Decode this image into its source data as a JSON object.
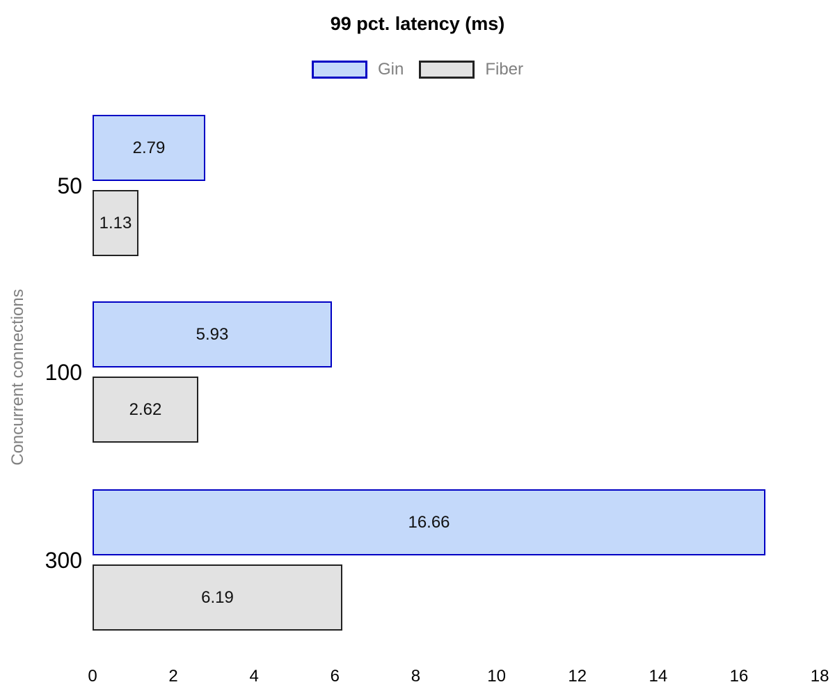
{
  "chart_data": {
    "type": "bar",
    "orientation": "horizontal",
    "title": "99 pct. latency (ms)",
    "xlabel": "",
    "ylabel": "Concurrent connections",
    "categories": [
      "50",
      "100",
      "300"
    ],
    "series": [
      {
        "name": "Gin",
        "values": [
          2.79,
          5.93,
          16.66
        ],
        "fill_color": "#c4d9fa",
        "border_color": "#0000c4"
      },
      {
        "name": "Fiber",
        "values": [
          1.13,
          2.62,
          6.19
        ],
        "fill_color": "#e2e2e2",
        "border_color": "#222222"
      }
    ],
    "xlim": [
      0,
      18
    ],
    "x_ticks": [
      "0",
      "2",
      "4",
      "6",
      "8",
      "10",
      "12",
      "14",
      "16",
      "18"
    ],
    "grid": false,
    "axis_lines": false,
    "legend_position": "top-center",
    "value_labels": "inside-center",
    "colors": {
      "background": "#ffffff",
      "title_text": "#000000",
      "legend_text": "#808080",
      "ylabel_text": "#808080",
      "axis_tick_text": "#000000",
      "category_text": "#000000",
      "value_text": "#111111"
    }
  }
}
